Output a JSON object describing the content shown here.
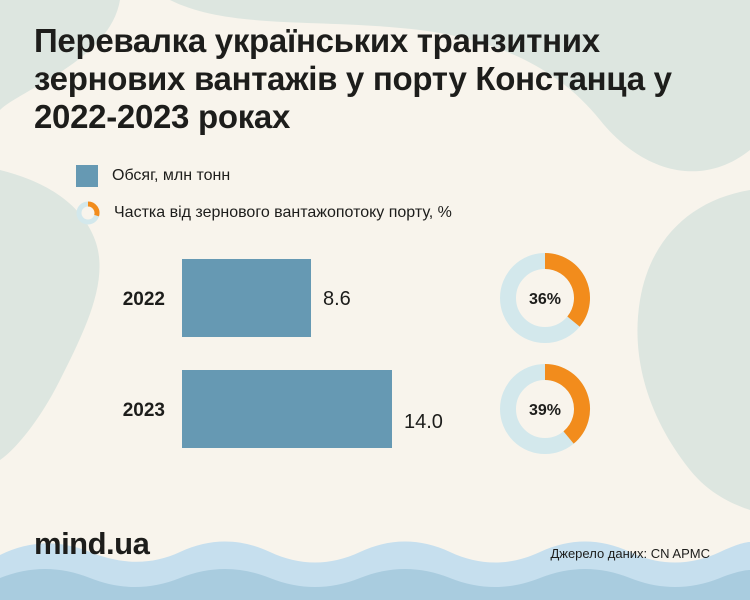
{
  "title": "Перевалка українських транзитних зернових вантажів у порту Констанца у 2022-2023 роках",
  "legend": {
    "volume_label": "Обсяг, млн тонн",
    "share_label": "Частка від зернового вантажопотоку порту, %"
  },
  "colors": {
    "bar": "#6699b3",
    "donut_fill": "#f28c1c",
    "donut_track": "#d3e8ec",
    "background": "#f8f4ec",
    "blob": "#dde6e0",
    "wave_dark": "#a9ccdf",
    "wave_light": "#c6dfee"
  },
  "chart_data": {
    "type": "bar",
    "orientation": "horizontal",
    "categories": [
      "2022",
      "2023"
    ],
    "series": [
      {
        "name": "Обсяг, млн тонн",
        "values": [
          8.6,
          14.0
        ],
        "value_labels": [
          "8.6",
          "14.0"
        ]
      },
      {
        "name": "Частка від зернового вантажопотоку порту, %",
        "type": "donut",
        "values": [
          36,
          39
        ],
        "value_labels": [
          "36%",
          "39%"
        ]
      }
    ]
  },
  "footer": {
    "logo": "mind.ua",
    "source": "Джерело даних: CN APMC"
  }
}
